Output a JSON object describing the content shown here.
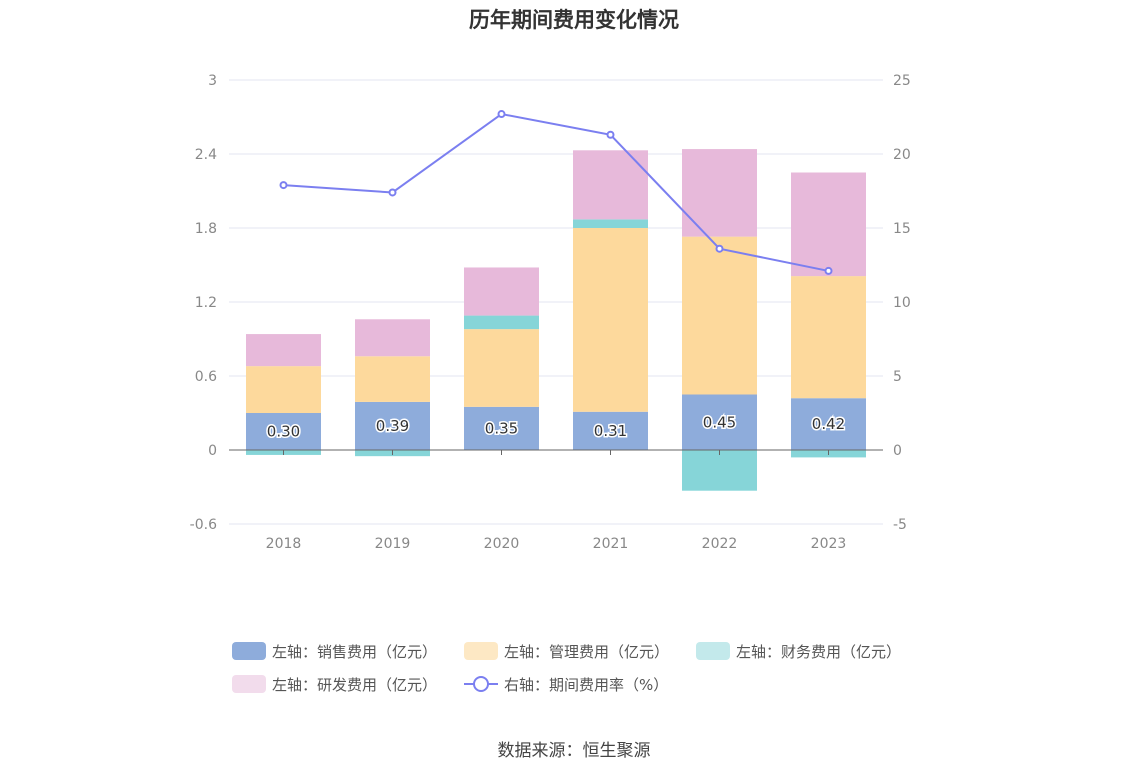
{
  "chart_data": {
    "type": "bar",
    "title": "历年期间费用变化情况",
    "categories": [
      "2018",
      "2019",
      "2020",
      "2021",
      "2022",
      "2023"
    ],
    "left_axis": {
      "ylim": [
        -0.6,
        3
      ],
      "ticks": [
        "3",
        "2.4",
        "1.8",
        "1.2",
        "0.6",
        "0",
        "-0.6"
      ]
    },
    "right_axis": {
      "ylim": [
        -5,
        25
      ],
      "ticks": [
        "25",
        "20",
        "15",
        "10",
        "5",
        "0",
        "-5"
      ]
    },
    "stacked": true,
    "series": [
      {
        "name": "左轴：销售费用（亿元）",
        "axis": "left",
        "color": "#8eacdb",
        "values": [
          0.3,
          0.39,
          0.35,
          0.31,
          0.45,
          0.42
        ],
        "labels": [
          "0.30",
          "0.39",
          "0.35",
          "0.31",
          "0.45",
          "0.42"
        ]
      },
      {
        "name": "左轴：管理费用（亿元）",
        "axis": "left",
        "color": "#fdd99c",
        "values": [
          0.38,
          0.37,
          0.63,
          1.49,
          1.28,
          0.99
        ]
      },
      {
        "name": "左轴：财务费用（亿元）",
        "axis": "left",
        "color": "#86d5d8",
        "values": [
          -0.04,
          -0.05,
          0.11,
          0.07,
          -0.33,
          -0.06
        ]
      },
      {
        "name": "左轴：研发费用（亿元）",
        "axis": "left",
        "color": "#e7b9da",
        "values": [
          0.26,
          0.3,
          0.39,
          0.56,
          0.71,
          0.84
        ]
      },
      {
        "name": "右轴：期间费用率（%）",
        "axis": "right",
        "type": "line",
        "color": "#7b7ff0",
        "values": [
          17.9,
          17.4,
          22.7,
          21.3,
          13.6,
          12.1
        ]
      }
    ],
    "legend_position": "bottom",
    "grid": true
  },
  "legend": [
    {
      "label": "左轴：销售费用（亿元）",
      "color": "#8eacdb",
      "kind": "bar"
    },
    {
      "label": "左轴：管理费用（亿元）",
      "color": "#fde8c4",
      "kind": "bar"
    },
    {
      "label": "左轴：财务费用（亿元）",
      "color": "#c3e9eb",
      "kind": "bar"
    },
    {
      "label": "左轴：研发费用（亿元）",
      "color": "#f2dcec",
      "kind": "bar"
    },
    {
      "label": "右轴：期间费用率（%）",
      "color": "#7b7ff0",
      "kind": "line"
    }
  ],
  "source": "数据来源：恒生聚源"
}
